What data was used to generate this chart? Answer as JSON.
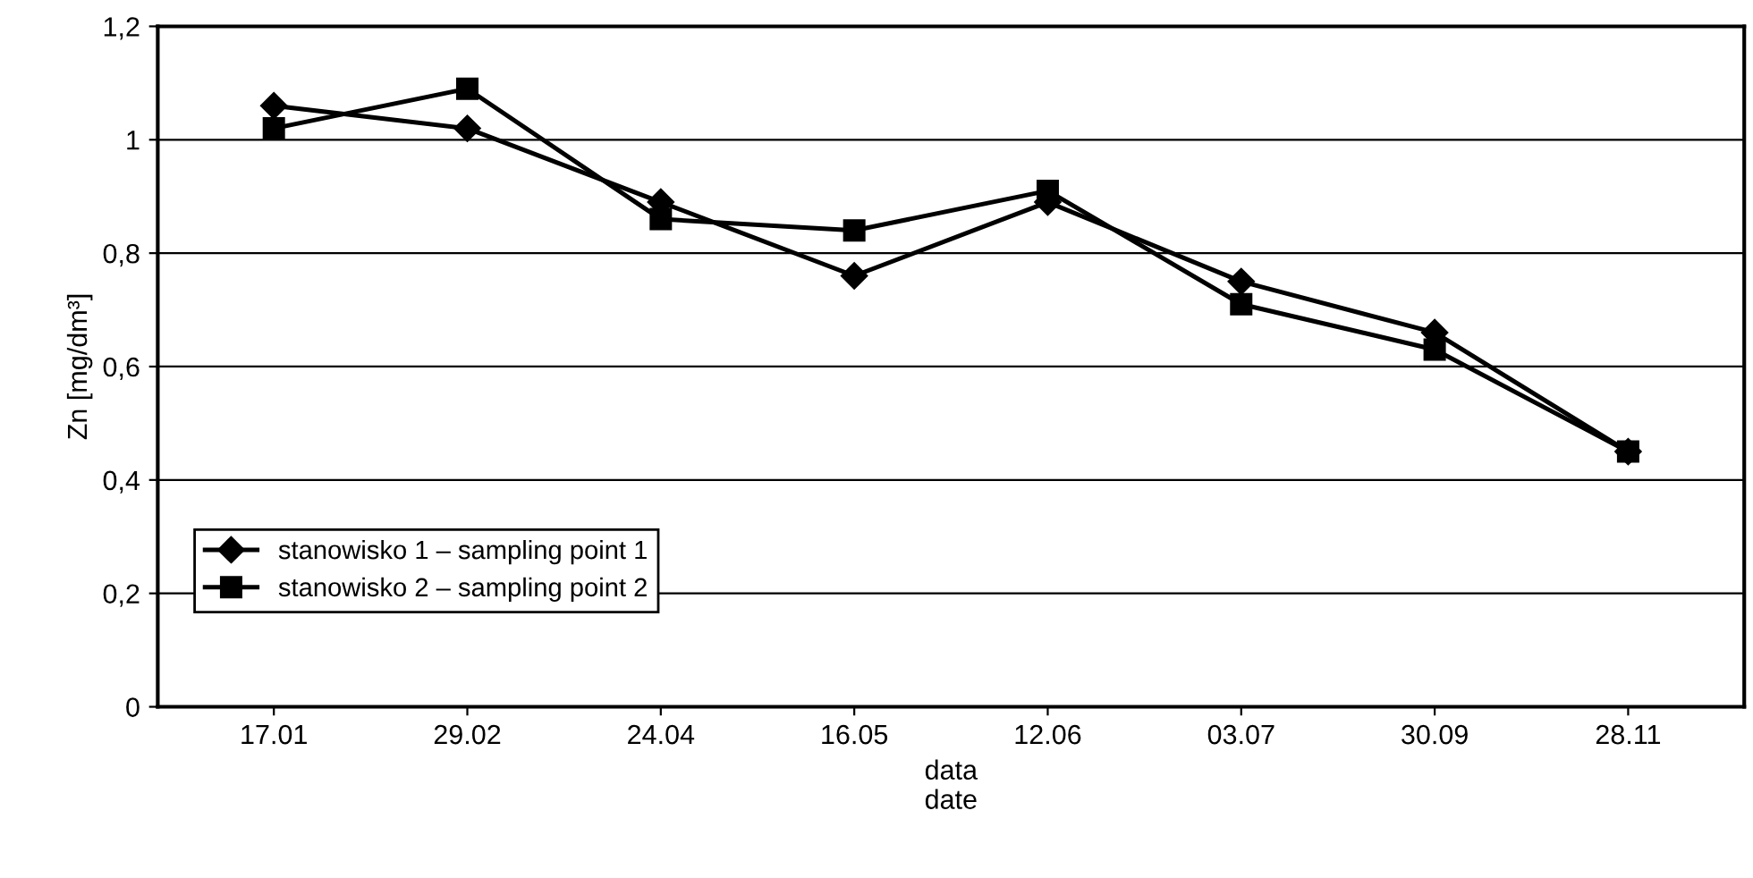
{
  "chart_data": {
    "type": "line",
    "xlabel": "data\ndate",
    "ylabel": "Zn [mg/dm³]",
    "categories": [
      "17.01",
      "29.02",
      "24.04",
      "16.05",
      "12.06",
      "03.07",
      "30.09",
      "28.11"
    ],
    "series": [
      {
        "name": "stanowisko 1 – sampling point 1",
        "color": "#000000",
        "marker": "diamond",
        "values": [
          1.06,
          1.02,
          0.89,
          0.76,
          0.89,
          0.75,
          0.66,
          0.45
        ]
      },
      {
        "name": "stanowisko 2 – sampling point 2",
        "color": "#000000",
        "marker": "square",
        "values": [
          1.02,
          1.09,
          0.86,
          0.84,
          0.91,
          0.71,
          0.63,
          0.45
        ]
      }
    ],
    "ylim": [
      0,
      1.2
    ],
    "yticks": [
      0,
      {
        "value": 0.2,
        "label": "0,2"
      },
      {
        "value": 0.4,
        "label": "0,4"
      },
      {
        "value": 0.6,
        "label": "0,6"
      },
      {
        "value": 0.8,
        "label": "0,8"
      },
      1,
      {
        "value": 1.2,
        "label": "1,2"
      }
    ],
    "grid": "y",
    "legend": "bottom left",
    "line_style": "solid"
  }
}
